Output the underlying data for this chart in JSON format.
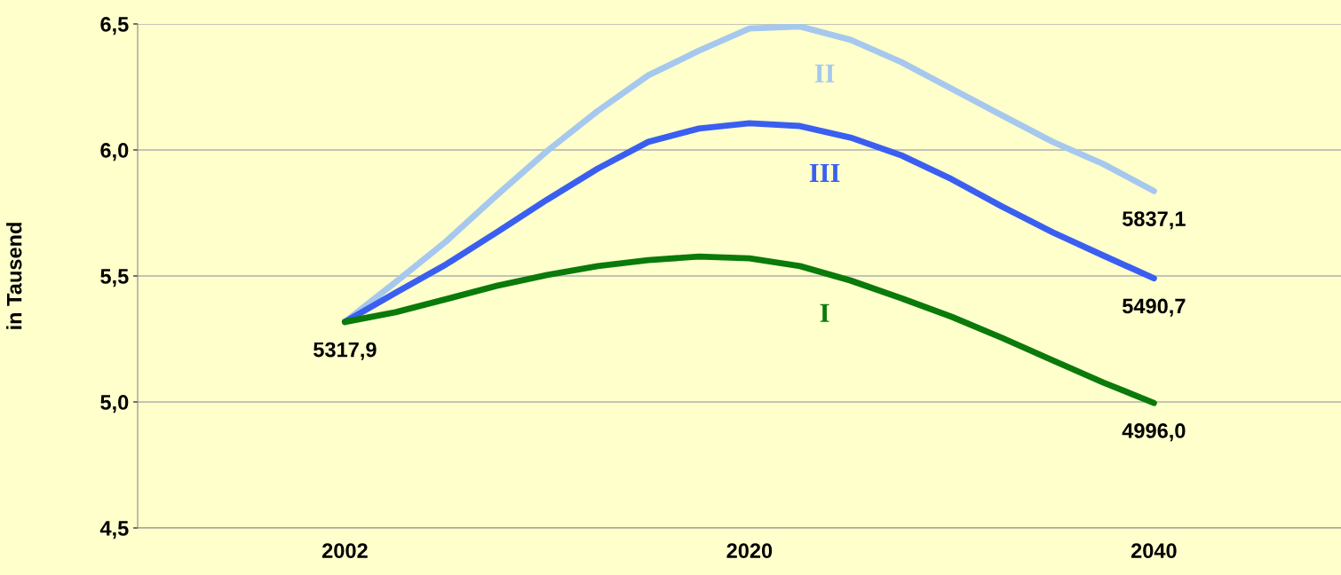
{
  "chart_data": {
    "type": "line",
    "ylabel": "in Tausend",
    "categories": [
      "2002",
      null,
      null,
      null,
      null,
      null,
      null,
      null,
      "2020",
      null,
      null,
      null,
      null,
      null,
      null,
      null,
      "2040"
    ],
    "series": [
      {
        "name": "II",
        "color": "#a6c8ee",
        "values": [
          5.3179,
          5.475,
          5.637,
          5.82,
          5.996,
          6.155,
          6.296,
          6.394,
          6.482,
          6.49,
          6.437,
          6.349,
          6.243,
          6.137,
          6.032,
          5.944,
          5.8371
        ]
      },
      {
        "name": "III",
        "color": "#3a5ff0",
        "values": [
          5.3179,
          5.433,
          5.546,
          5.673,
          5.803,
          5.926,
          6.032,
          6.085,
          6.106,
          6.095,
          6.049,
          5.979,
          5.884,
          5.775,
          5.673,
          5.581,
          5.4907
        ]
      },
      {
        "name": "I",
        "color": "#0a7a0a",
        "values": [
          5.3179,
          5.356,
          5.408,
          5.461,
          5.504,
          5.539,
          5.563,
          5.577,
          5.57,
          5.539,
          5.482,
          5.412,
          5.338,
          5.254,
          5.165,
          5.077,
          4.996
        ]
      }
    ],
    "annotations": [
      {
        "text": "5317,9",
        "x": "2002",
        "y": 5.3179
      },
      {
        "text": "5837,1",
        "x": "2040",
        "y": 5.8371
      },
      {
        "text": "5490,7",
        "x": "2040",
        "y": 5.4907
      },
      {
        "text": "4996,0",
        "x": "2040",
        "y": 4.996
      }
    ],
    "ylim": [
      4.5,
      6.5
    ],
    "yticks": [
      {
        "value": 4.5,
        "label": "4,5"
      },
      {
        "value": 5.0,
        "label": "5,0"
      },
      {
        "value": 5.5,
        "label": "5,5"
      },
      {
        "value": 6.0,
        "label": "6,0"
      },
      {
        "value": 6.5,
        "label": "6,5"
      }
    ],
    "grid": "y",
    "legend": false,
    "marker": "none",
    "line_style": "solid"
  }
}
